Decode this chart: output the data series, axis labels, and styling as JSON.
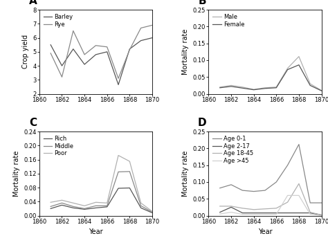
{
  "years": [
    1861,
    1862,
    1863,
    1864,
    1865,
    1866,
    1867,
    1868,
    1869,
    1870
  ],
  "A": {
    "barley": [
      5.5,
      4.0,
      5.2,
      4.1,
      4.8,
      5.0,
      2.65,
      5.2,
      5.8,
      6.0
    ],
    "rye": [
      4.9,
      3.2,
      6.5,
      4.8,
      5.45,
      5.35,
      3.1,
      5.15,
      6.7,
      6.9
    ],
    "ylabel": "Crop yield",
    "ylim": [
      2,
      8
    ],
    "yticks": [
      2,
      3,
      4,
      5,
      6,
      7,
      8
    ],
    "label": "A"
  },
  "B": {
    "male": [
      0.02,
      0.025,
      0.02,
      0.013,
      0.018,
      0.02,
      0.076,
      0.111,
      0.03,
      0.01
    ],
    "female": [
      0.018,
      0.022,
      0.017,
      0.012,
      0.016,
      0.018,
      0.072,
      0.086,
      0.025,
      0.009
    ],
    "ylabel": "Mortality rate",
    "ylim": [
      0,
      0.25
    ],
    "yticks": [
      0.0,
      0.05,
      0.1,
      0.15,
      0.2,
      0.25
    ],
    "label": "B"
  },
  "C": {
    "rich": [
      0.02,
      0.03,
      0.022,
      0.018,
      0.022,
      0.025,
      0.078,
      0.079,
      0.022,
      0.008
    ],
    "middle": [
      0.026,
      0.036,
      0.026,
      0.02,
      0.028,
      0.028,
      0.125,
      0.126,
      0.028,
      0.01
    ],
    "poor": [
      0.038,
      0.044,
      0.036,
      0.028,
      0.038,
      0.036,
      0.172,
      0.155,
      0.036,
      0.012
    ],
    "ylabel": "Mortality rate",
    "ylim": [
      0,
      0.24
    ],
    "yticks": [
      0.0,
      0.04,
      0.08,
      0.12,
      0.16,
      0.2,
      0.24
    ],
    "label": "C"
  },
  "D": {
    "age0_1": [
      0.082,
      0.092,
      0.075,
      0.072,
      0.075,
      0.1,
      0.15,
      0.212,
      0.038,
      0.038
    ],
    "age2_17": [
      0.01,
      0.025,
      0.008,
      0.008,
      0.008,
      0.008,
      0.008,
      0.008,
      0.008,
      0.002
    ],
    "age18_45": [
      0.028,
      0.028,
      0.022,
      0.018,
      0.02,
      0.022,
      0.04,
      0.095,
      0.01,
      0.002
    ],
    "age45p": [
      0.005,
      0.01,
      0.004,
      0.004,
      0.004,
      0.004,
      0.06,
      0.06,
      0.004,
      0.0
    ],
    "ylabel": "Mortality rate",
    "ylim": [
      0,
      0.25
    ],
    "yticks": [
      0.0,
      0.05,
      0.1,
      0.15,
      0.2,
      0.25
    ],
    "label": "D"
  },
  "colors": {
    "dark": "#555555",
    "medium": "#888888",
    "light": "#b0b0b0",
    "lighter": "#d0d0d0"
  },
  "xticks": [
    1860,
    1862,
    1864,
    1866,
    1868,
    1870
  ],
  "xlabel": "Year",
  "bg_color": "#ffffff",
  "fig_bg": "#ffffff"
}
